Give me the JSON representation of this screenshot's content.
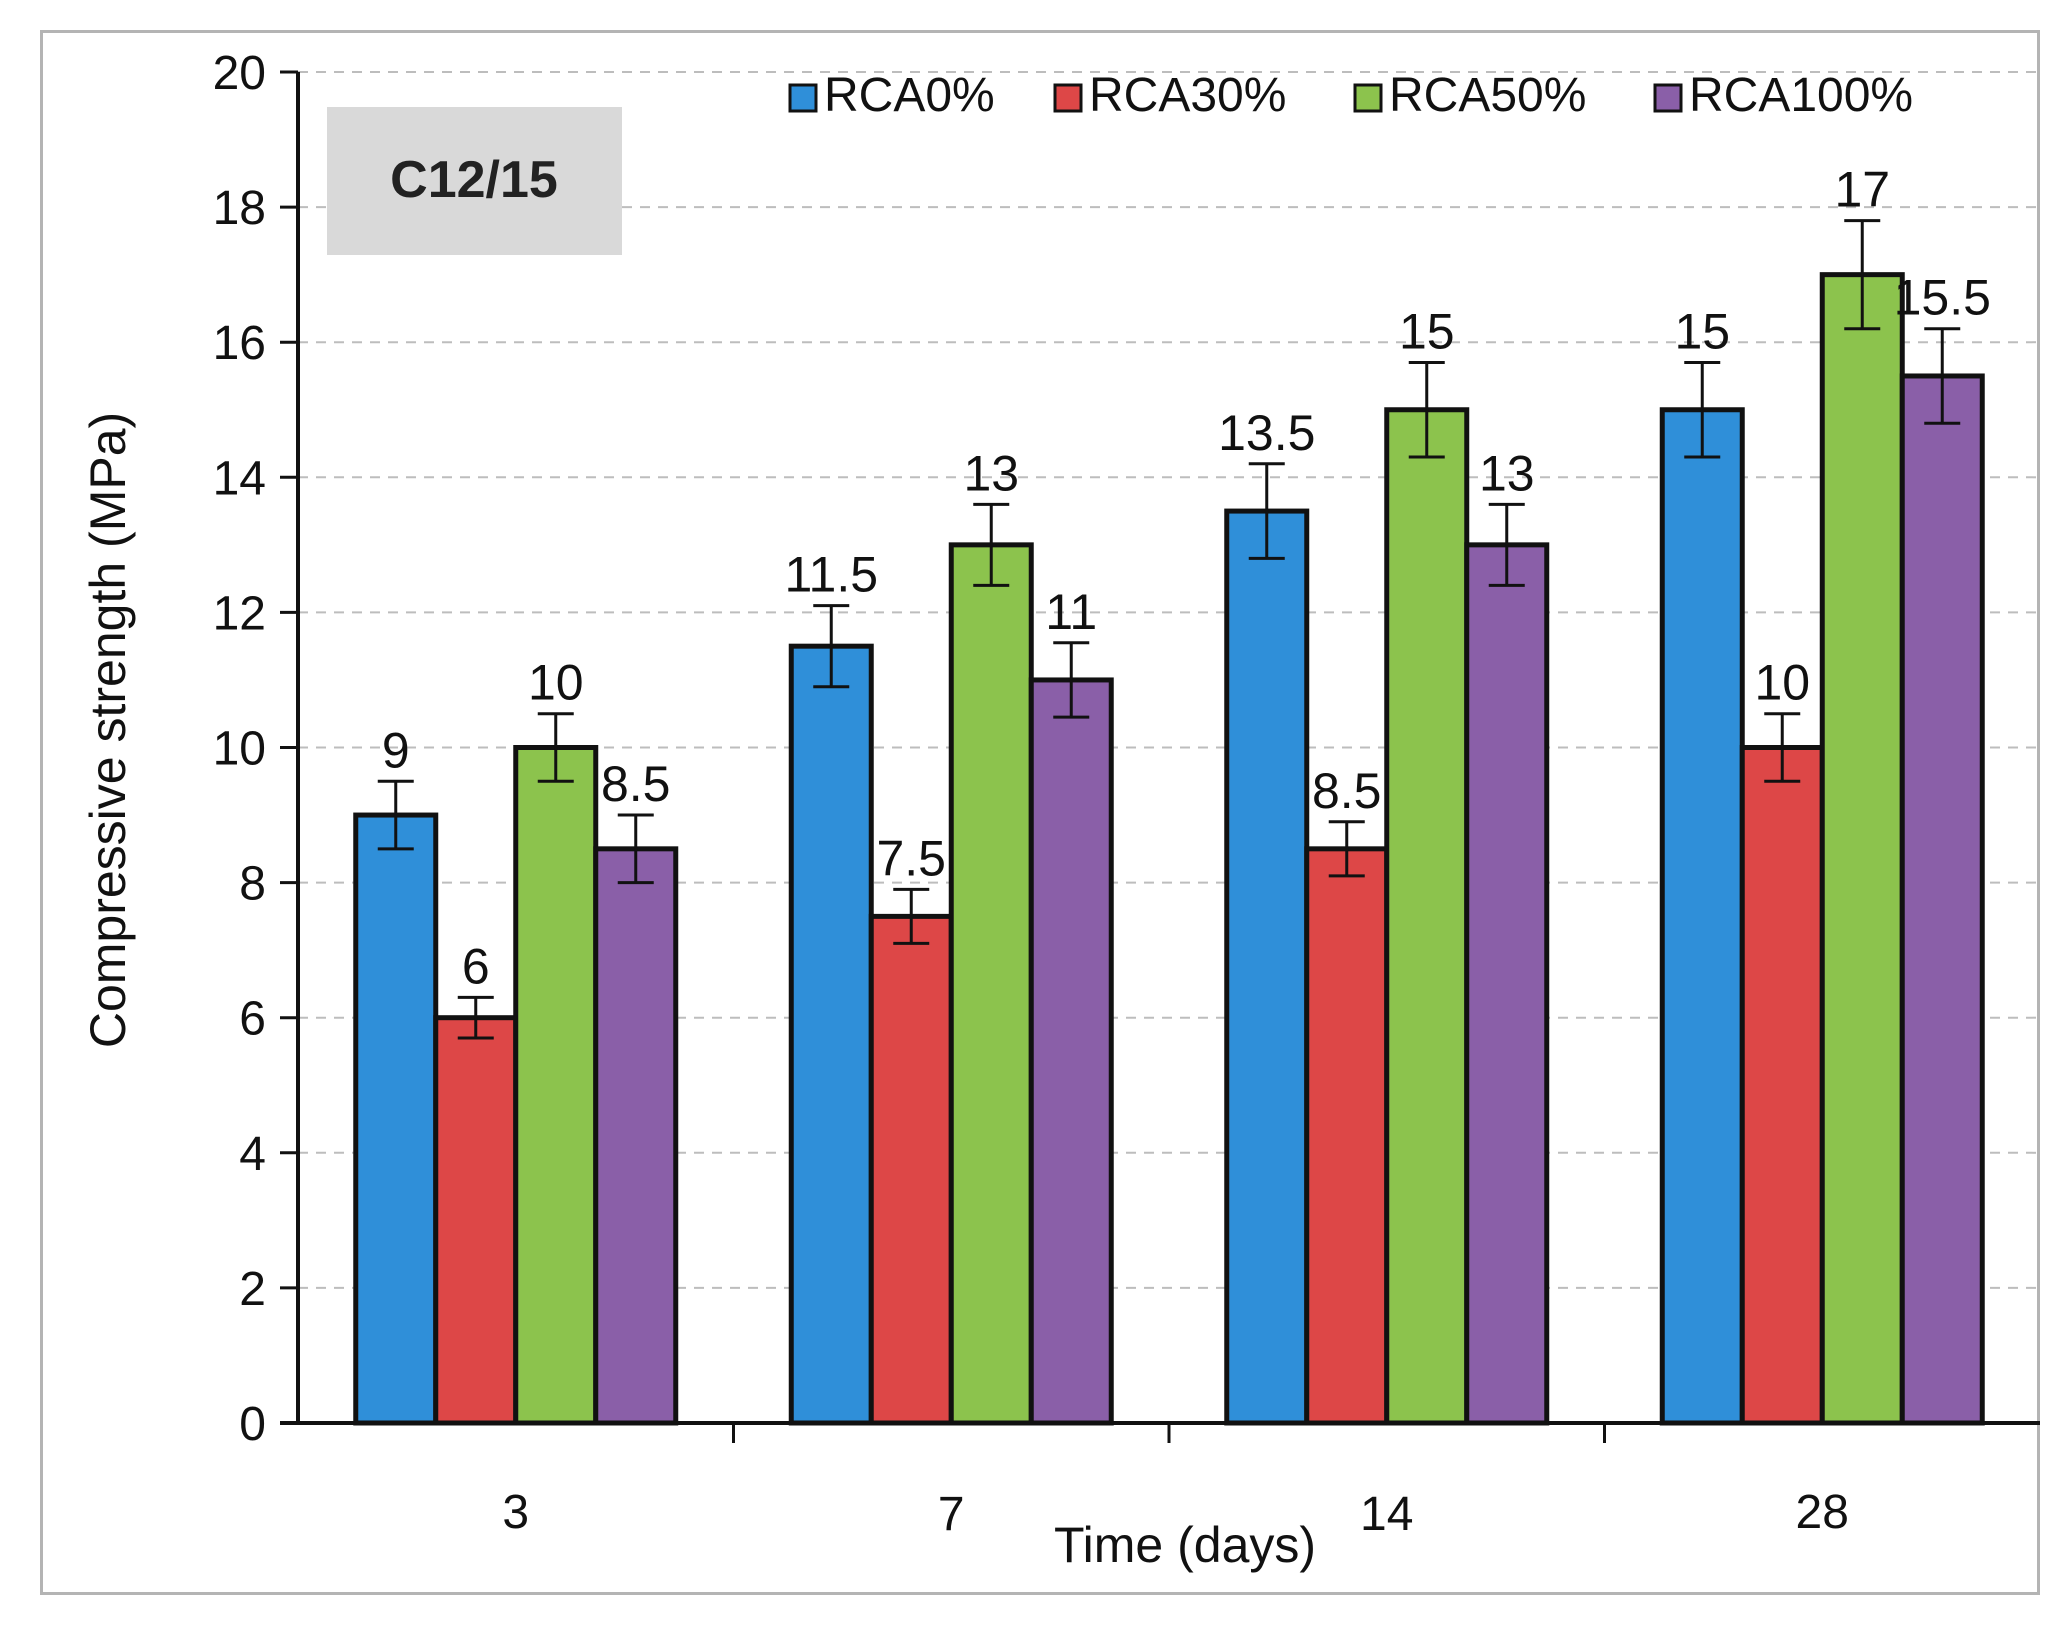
{
  "chart_data": {
    "type": "bar",
    "title": "",
    "badge": "C12/15",
    "xlabel": "Time (days)",
    "ylabel": "Compressive strength (MPa)",
    "categories": [
      "3",
      "7",
      "14",
      "28"
    ],
    "ylim": [
      0,
      20
    ],
    "yticks": [
      "0",
      "2",
      "4",
      "6",
      "8",
      "10",
      "12",
      "14",
      "16",
      "18",
      "20"
    ],
    "grid": true,
    "legend_position": "top",
    "series": [
      {
        "name": "RCA0%",
        "color": "#2f8fd9",
        "values": [
          9,
          11.5,
          13.5,
          15
        ],
        "labels": [
          "9",
          "11.5",
          "13.5",
          "15"
        ],
        "errors": [
          0.5,
          0.6,
          0.7,
          0.7
        ]
      },
      {
        "name": "RCA30%",
        "color": "#dd4747",
        "values": [
          6,
          7.5,
          8.5,
          10
        ],
        "labels": [
          "6",
          "7.5",
          "8.5",
          "10"
        ],
        "errors": [
          0.3,
          0.4,
          0.4,
          0.5
        ]
      },
      {
        "name": "RCA50%",
        "color": "#8cc34d",
        "values": [
          10,
          13,
          15,
          17
        ],
        "labels": [
          "10",
          "13",
          "15",
          "17"
        ],
        "errors": [
          0.5,
          0.6,
          0.7,
          0.8
        ]
      },
      {
        "name": "RCA100%",
        "color": "#8a5fa8",
        "values": [
          8.5,
          11,
          13,
          15.5
        ],
        "labels": [
          "8.5",
          "11",
          "13",
          "15.5"
        ],
        "errors": [
          0.5,
          0.55,
          0.6,
          0.7
        ]
      }
    ]
  }
}
